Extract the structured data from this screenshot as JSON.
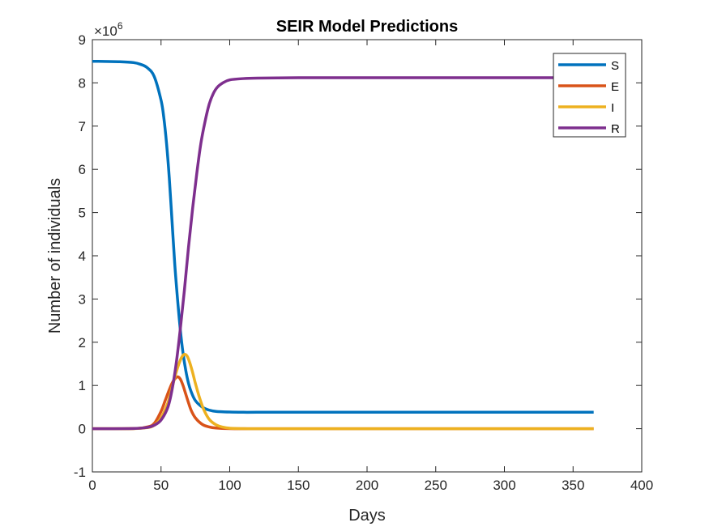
{
  "chart_data": {
    "type": "line",
    "title": "SEIR Model Predictions",
    "xlabel": "Days",
    "ylabel": "Number of individuals",
    "y_exponent_label": {
      "base": "×10",
      "power": "6"
    },
    "xlim": [
      0,
      400
    ],
    "ylim": [
      -1,
      9
    ],
    "xticks": [
      0,
      50,
      100,
      150,
      200,
      250,
      300,
      350,
      400
    ],
    "yticks": [
      -1,
      0,
      1,
      2,
      3,
      4,
      5,
      6,
      7,
      8,
      9
    ],
    "grid": false,
    "legend_position": "top-right",
    "series": [
      {
        "name": "S",
        "color": "#0072BD",
        "x": [
          0,
          20,
          30,
          35,
          40,
          45,
          50,
          52,
          54,
          56,
          58,
          60,
          62,
          64,
          66,
          68,
          70,
          72,
          75,
          80,
          85,
          90,
          100,
          110,
          120,
          150,
          200,
          250,
          300,
          365
        ],
        "y": [
          8.5,
          8.49,
          8.47,
          8.43,
          8.35,
          8.15,
          7.6,
          7.2,
          6.6,
          5.8,
          4.8,
          3.8,
          3.0,
          2.3,
          1.75,
          1.35,
          1.05,
          0.85,
          0.65,
          0.5,
          0.43,
          0.4,
          0.385,
          0.38,
          0.38,
          0.38,
          0.38,
          0.38,
          0.38,
          0.38
        ]
      },
      {
        "name": "E",
        "color": "#D95319",
        "x": [
          0,
          30,
          40,
          45,
          50,
          53,
          56,
          58,
          60,
          62,
          64,
          66,
          68,
          70,
          72,
          75,
          80,
          85,
          90,
          100,
          120,
          150,
          200,
          250,
          300,
          365
        ],
        "y": [
          0,
          0.005,
          0.04,
          0.12,
          0.4,
          0.65,
          0.9,
          1.05,
          1.15,
          1.2,
          1.15,
          1.0,
          0.8,
          0.6,
          0.42,
          0.25,
          0.1,
          0.04,
          0.015,
          0.002,
          0,
          0,
          0,
          0,
          0,
          0
        ]
      },
      {
        "name": "I",
        "color": "#EDB120",
        "x": [
          0,
          30,
          40,
          45,
          50,
          55,
          58,
          61,
          63,
          65,
          67,
          69,
          71,
          73,
          75,
          78,
          81,
          85,
          90,
          95,
          100,
          110,
          120,
          150,
          200,
          250,
          300,
          365
        ],
        "y": [
          0,
          0.003,
          0.025,
          0.08,
          0.25,
          0.6,
          0.95,
          1.3,
          1.5,
          1.65,
          1.72,
          1.68,
          1.52,
          1.3,
          1.05,
          0.72,
          0.45,
          0.22,
          0.09,
          0.035,
          0.012,
          0.002,
          0,
          0,
          0,
          0,
          0,
          0
        ]
      },
      {
        "name": "R",
        "color": "#7E2F8E",
        "x": [
          0,
          30,
          40,
          45,
          50,
          55,
          58,
          61,
          64,
          67,
          70,
          73,
          76,
          79,
          82,
          85,
          88,
          91,
          95,
          100,
          110,
          120,
          150,
          200,
          250,
          300,
          365
        ],
        "y": [
          0,
          0.005,
          0.03,
          0.08,
          0.2,
          0.5,
          0.9,
          1.5,
          2.3,
          3.2,
          4.2,
          5.1,
          5.9,
          6.6,
          7.1,
          7.5,
          7.75,
          7.9,
          8.0,
          8.07,
          8.1,
          8.11,
          8.12,
          8.12,
          8.12,
          8.12,
          8.12
        ]
      }
    ]
  }
}
